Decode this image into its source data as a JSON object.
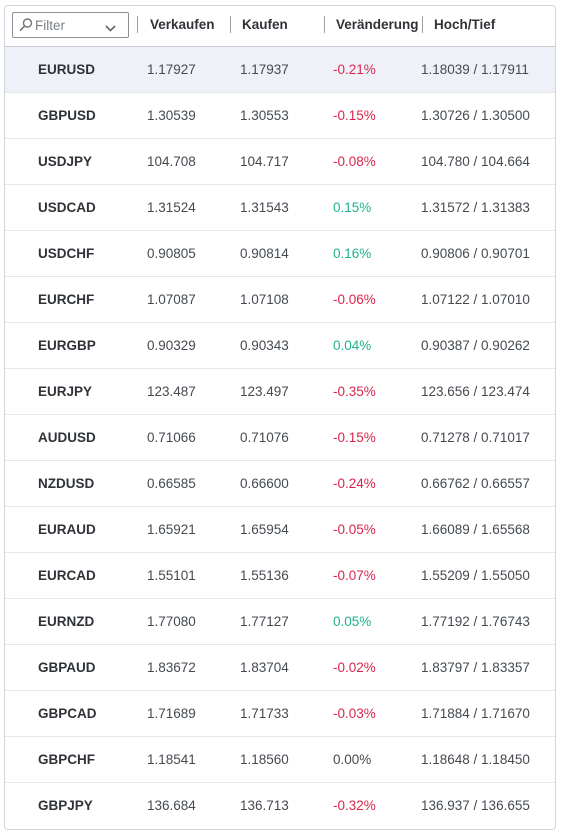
{
  "filter": {
    "placeholder": "Filter"
  },
  "columns": {
    "sell": "Verkaufen",
    "buy": "Kaufen",
    "change": "Veränderung",
    "high_low": "Hoch/Tief"
  },
  "colors": {
    "negative": "#d7264d",
    "positive": "#20b28e",
    "selected_row": "#eef2f8"
  },
  "rows": [
    {
      "symbol": "EURUSD",
      "sell": "1.17927",
      "buy": "1.17937",
      "change": "-0.21%",
      "high_low": "1.18039 / 1.17911",
      "selected": true
    },
    {
      "symbol": "GBPUSD",
      "sell": "1.30539",
      "buy": "1.30553",
      "change": "-0.15%",
      "high_low": "1.30726 / 1.30500"
    },
    {
      "symbol": "USDJPY",
      "sell": "104.708",
      "buy": "104.717",
      "change": "-0.08%",
      "high_low": "104.780 / 104.664"
    },
    {
      "symbol": "USDCAD",
      "sell": "1.31524",
      "buy": "1.31543",
      "change": "0.15%",
      "high_low": "1.31572 / 1.31383"
    },
    {
      "symbol": "USDCHF",
      "sell": "0.90805",
      "buy": "0.90814",
      "change": "0.16%",
      "high_low": "0.90806 / 0.90701"
    },
    {
      "symbol": "EURCHF",
      "sell": "1.07087",
      "buy": "1.07108",
      "change": "-0.06%",
      "high_low": "1.07122 / 1.07010"
    },
    {
      "symbol": "EURGBP",
      "sell": "0.90329",
      "buy": "0.90343",
      "change": "0.04%",
      "high_low": "0.90387 / 0.90262"
    },
    {
      "symbol": "EURJPY",
      "sell": "123.487",
      "buy": "123.497",
      "change": "-0.35%",
      "high_low": "123.656 / 123.474"
    },
    {
      "symbol": "AUDUSD",
      "sell": "0.71066",
      "buy": "0.71076",
      "change": "-0.15%",
      "high_low": "0.71278 / 0.71017"
    },
    {
      "symbol": "NZDUSD",
      "sell": "0.66585",
      "buy": "0.66600",
      "change": "-0.24%",
      "high_low": "0.66762 / 0.66557"
    },
    {
      "symbol": "EURAUD",
      "sell": "1.65921",
      "buy": "1.65954",
      "change": "-0.05%",
      "high_low": "1.66089 / 1.65568"
    },
    {
      "symbol": "EURCAD",
      "sell": "1.55101",
      "buy": "1.55136",
      "change": "-0.07%",
      "high_low": "1.55209 / 1.55050"
    },
    {
      "symbol": "EURNZD",
      "sell": "1.77080",
      "buy": "1.77127",
      "change": "0.05%",
      "high_low": "1.77192 / 1.76743"
    },
    {
      "symbol": "GBPAUD",
      "sell": "1.83672",
      "buy": "1.83704",
      "change": "-0.02%",
      "high_low": "1.83797 / 1.83357"
    },
    {
      "symbol": "GBPCAD",
      "sell": "1.71689",
      "buy": "1.71733",
      "change": "-0.03%",
      "high_low": "1.71884 / 1.71670"
    },
    {
      "symbol": "GBPCHF",
      "sell": "1.18541",
      "buy": "1.18560",
      "change": "0.00%",
      "high_low": "1.18648 / 1.18450"
    },
    {
      "symbol": "GBPJPY",
      "sell": "136.684",
      "buy": "136.713",
      "change": "-0.32%",
      "high_low": "136.937 / 136.655"
    }
  ]
}
